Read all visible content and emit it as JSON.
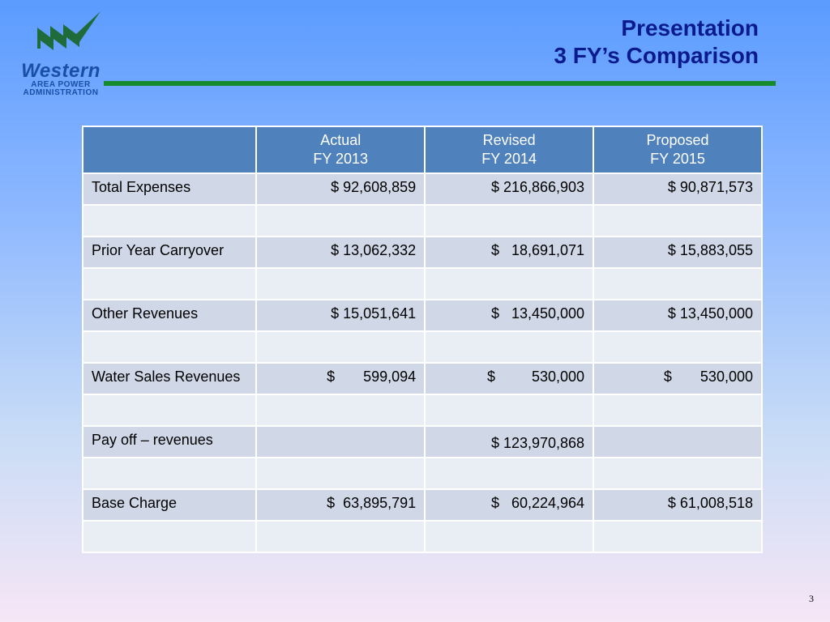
{
  "logo": {
    "word": "Western",
    "sub1": "AREA POWER",
    "sub2": "ADMINISTRATION"
  },
  "title": {
    "line1": "Presentation",
    "line2": "3 FY’s Comparison"
  },
  "table": {
    "headers": [
      {
        "line1": "",
        "line2": ""
      },
      {
        "line1": "Actual",
        "line2": "FY 2013"
      },
      {
        "line1": "Revised",
        "line2": "FY 2014"
      },
      {
        "line1": "Proposed",
        "line2": "FY 2015"
      }
    ],
    "rows": [
      {
        "label": "Total Expenses",
        "fy2013": "$ 92,608,859",
        "fy2014": "$ 216,866,903",
        "fy2015": "$ 90,871,573"
      },
      {
        "label": "",
        "fy2013": "",
        "fy2014": "",
        "fy2015": ""
      },
      {
        "label": "Prior Year Carryover",
        "fy2013": "$ 13,062,332",
        "fy2014": "$   18,691,071",
        "fy2015": "$ 15,883,055"
      },
      {
        "label": "",
        "fy2013": "",
        "fy2014": "",
        "fy2015": ""
      },
      {
        "label": "Other Revenues",
        "fy2013": "$ 15,051,641",
        "fy2014": "$   13,450,000",
        "fy2015": "$ 13,450,000"
      },
      {
        "label": "",
        "fy2013": "",
        "fy2014": "",
        "fy2015": ""
      },
      {
        "label": "Water Sales Revenues",
        "fy2013": "$       599,094",
        "fy2014": "$         530,000",
        "fy2015": "$       530,000"
      },
      {
        "label": "",
        "fy2013": "",
        "fy2014": "",
        "fy2015": ""
      },
      {
        "label": "Pay off – revenues",
        "fy2013": "",
        "fy2014": "$ 123,970,868",
        "fy2015": ""
      },
      {
        "label": "",
        "fy2013": "",
        "fy2014": "",
        "fy2015": ""
      },
      {
        "label": "Base Charge",
        "fy2013": "$  63,895,791",
        "fy2014": "$   60,224,964",
        "fy2015": "$ 61,008,518"
      },
      {
        "label": "",
        "fy2013": "",
        "fy2014": "",
        "fy2015": ""
      }
    ]
  },
  "page_number": "3",
  "colors": {
    "header_bg": "#4f81bd",
    "row_odd": "#d0d8e8",
    "row_even": "#e9edf4",
    "title": "#0b1a8c",
    "rule": "#178a2d"
  }
}
